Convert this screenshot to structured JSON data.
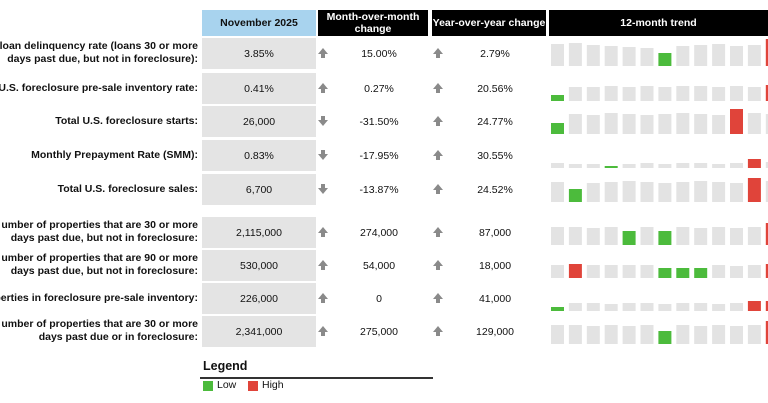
{
  "header": {
    "columns": [
      "November 2025",
      "Month-over-month change",
      "Year-over-year change",
      "12-month trend"
    ]
  },
  "rows": [
    {
      "label": [
        "loan delinquency rate (loans 30 or more",
        "days past due, but not in foreclosure):"
      ],
      "value": "3.85%",
      "mom": "15.00%",
      "yoy": "2.79%",
      "trend": [
        22,
        23,
        21,
        20,
        19,
        18,
        13,
        20,
        21,
        22,
        20,
        21,
        27
      ]
    },
    {
      "label": [
        "U.S. foreclosure pre-sale inventory rate:"
      ],
      "value": "0.41%",
      "mom": "0.27%",
      "yoy": "20.56%",
      "trend": [
        6,
        14,
        14,
        15,
        14,
        15,
        14,
        15,
        15,
        14,
        15,
        14,
        16
      ]
    },
    {
      "label": [
        "Total U.S. foreclosure starts:"
      ],
      "value": "26,000",
      "mom": "-31.50%",
      "yoy": "24.77%",
      "trend": [
        11,
        20,
        19,
        21,
        20,
        19,
        20,
        21,
        20,
        19,
        25,
        21,
        20
      ]
    },
    {
      "label": [
        "Monthly Prepayment Rate (SMM):"
      ],
      "value": "0.83%",
      "mom": "-17.95%",
      "yoy": "30.55%",
      "trend": [
        5,
        4,
        4,
        2,
        4,
        5,
        4,
        5,
        5,
        4,
        5,
        9,
        6
      ]
    },
    {
      "label": [
        "Total U.S. foreclosure sales:"
      ],
      "value": "6,700",
      "mom": "-13.87%",
      "yoy": "24.52%",
      "trend": [
        20,
        13,
        19,
        20,
        21,
        20,
        19,
        20,
        21,
        20,
        19,
        24,
        21
      ]
    },
    {
      "label": [
        "umber of properties that are 30 or more",
        "days past due, but not in foreclosure:"
      ],
      "value": "2,115,000",
      "mom": "274,000",
      "yoy": "87,000",
      "trend": [
        18,
        18,
        17,
        18,
        14,
        18,
        14,
        18,
        17,
        18,
        17,
        18,
        22
      ]
    },
    {
      "label": [
        "umber of properties that are 90 or more",
        "days past due, but not in foreclosure:"
      ],
      "value": "530,000",
      "mom": "54,000",
      "yoy": "18,000",
      "trend": [
        13,
        14,
        13,
        13,
        13,
        13,
        10,
        10,
        10,
        13,
        12,
        13,
        14
      ]
    },
    {
      "label": [
        "perties in foreclosure pre-sale inventory:"
      ],
      "value": "226,000",
      "mom": "0",
      "yoy": "41,000",
      "trend": [
        4,
        8,
        8,
        7,
        8,
        8,
        7,
        8,
        8,
        7,
        8,
        10,
        10
      ]
    },
    {
      "label": [
        "umber of properties that are 30 or more",
        "days past due or in foreclosure:"
      ],
      "value": "2,341,000",
      "mom": "275,000",
      "yoy": "129,000",
      "trend": [
        19,
        19,
        18,
        19,
        18,
        19,
        13,
        19,
        18,
        19,
        18,
        19,
        23
      ]
    }
  ],
  "legend": {
    "title": "Legend",
    "items": [
      {
        "label": "Low",
        "color": "#4cbb3c"
      },
      {
        "label": "High",
        "color": "#e0443a"
      }
    ]
  }
}
